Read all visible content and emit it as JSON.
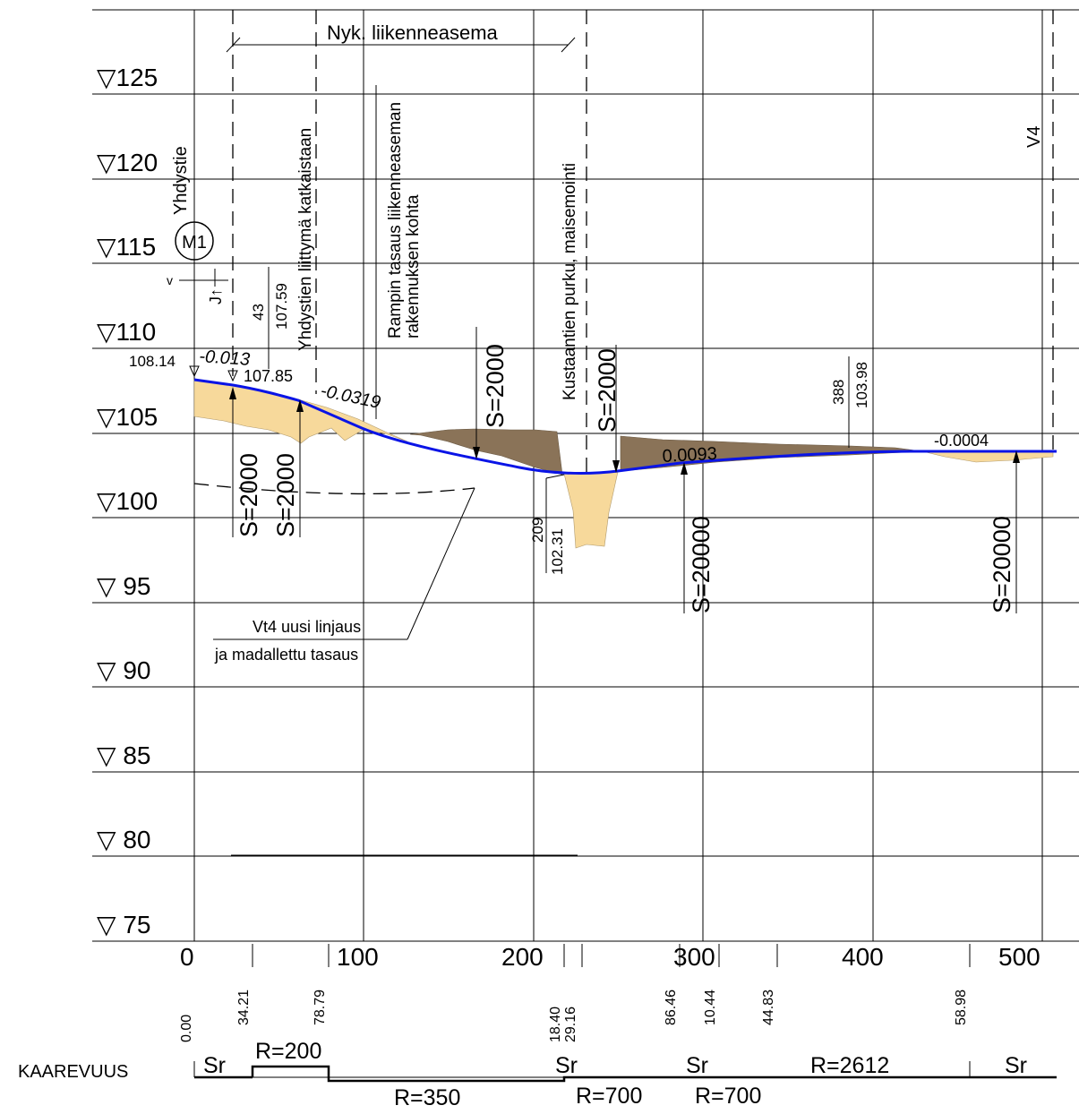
{
  "elevation_labels": [
    "▽125",
    "▽120",
    "▽115",
    "▽110",
    "▽105",
    "▽100",
    "▽ 95",
    "▽ 90",
    "▽ 85",
    "▽ 80",
    "▽ 75"
  ],
  "station_labels": [
    "0",
    "100",
    "200",
    "300",
    "400",
    "500"
  ],
  "structures": {
    "m1": "M1",
    "v4": "V4",
    "yhdystie": "Yhdystie",
    "jp": "J↑",
    "v": "v",
    "nyk_liikenneasema": "Nyk. liikenneasema",
    "liittyma": "Yhdystien liittymä katkaistaan",
    "rampin_line1": "Rampin tasaus liikenneaseman",
    "rampin_line2": "rakennuksen kohta",
    "kustaantien": "Kustaantien purku, maisemointi",
    "vt4_line1": "Vt4 uusi linjaus",
    "vt4_line2": "ja madallettu tasaus"
  },
  "profile": {
    "start_elevation": "108.14",
    "slope1": "-0.013",
    "pt1_station": "43",
    "pt1_elevation": "107.59",
    "pt2_elevation": "107.85",
    "slope2": "-0.0319",
    "slope3": "0.0093",
    "low_station": "209",
    "low_elevation": "102.31",
    "pt3_station": "388",
    "pt3_elevation": "103.98",
    "slope4": "-0.0004"
  },
  "vertical_curves": [
    "S=2000",
    "S=2000",
    "S=2000",
    "S=2000",
    "S=20000",
    "S=20000"
  ],
  "curvature": {
    "title": "KAAREVUUS",
    "stations": [
      "0.00",
      "34.21",
      "78.79",
      "18.40",
      "29.16",
      "86.46",
      "10.44",
      "44.83",
      "58.98"
    ],
    "segments": [
      "Sr",
      "R=200",
      "R=350",
      "Sr",
      "R=700",
      "Sr",
      "R=700",
      "R=2612",
      "Sr"
    ]
  }
}
